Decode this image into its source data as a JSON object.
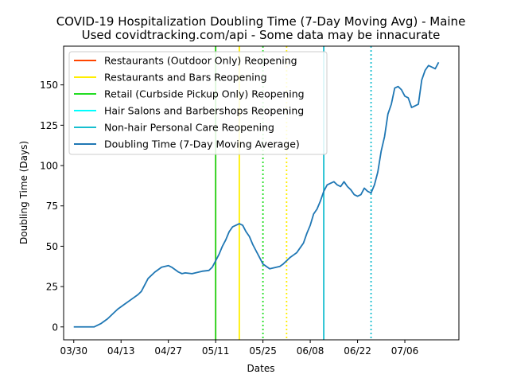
{
  "chart_data": {
    "type": "line",
    "title": "COVID-19 Hospitalization Doubling Time (7-Day Moving Avg) - Maine",
    "subtitle": "Used covidtracking.com/api - Some data may be innacurate",
    "xlabel": "Dates",
    "ylabel": "Doubling Time (Days)",
    "x_range": [
      "2020-03-27",
      "2020-07-22"
    ],
    "ylim": [
      -8,
      174
    ],
    "x_ticks": [
      {
        "date": "2020-03-30",
        "label": "03/30"
      },
      {
        "date": "2020-04-13",
        "label": "04/13"
      },
      {
        "date": "2020-04-27",
        "label": "04/27"
      },
      {
        "date": "2020-05-11",
        "label": "05/11"
      },
      {
        "date": "2020-05-25",
        "label": "05/25"
      },
      {
        "date": "2020-06-08",
        "label": "06/08"
      },
      {
        "date": "2020-06-22",
        "label": "06/22"
      },
      {
        "date": "2020-07-06",
        "label": "07/06"
      }
    ],
    "y_ticks": [
      0,
      25,
      50,
      75,
      100,
      125,
      150
    ],
    "grid": false,
    "legend_position": "top-left",
    "events": [
      {
        "name": "Restaurants (Outdoor Only) Reopening",
        "color": "#ff4500",
        "dates": [
          "2020-05-11"
        ],
        "styles": [
          "solid"
        ]
      },
      {
        "name": "Restaurants and Bars Reopening",
        "color": "#ffee00",
        "dates": [
          "2020-05-18",
          "2020-06-01"
        ],
        "styles": [
          "solid",
          "dotted"
        ]
      },
      {
        "name": "Retail (Curbside Pickup Only) Reopening",
        "color": "#22dd22",
        "dates": [
          "2020-05-11",
          "2020-05-25"
        ],
        "styles": [
          "solid",
          "dotted"
        ]
      },
      {
        "name": "Hair Salons and Barbershops Reopening",
        "color": "#00ffff",
        "dates": [],
        "styles": []
      },
      {
        "name": "Non-hair Personal Care Reopening",
        "color": "#17becf",
        "dates": [
          "2020-06-12",
          "2020-06-26"
        ],
        "styles": [
          "solid",
          "dotted"
        ]
      }
    ],
    "series": [
      {
        "name": "Doubling Time (7-Day Moving Average)",
        "color": "#1f77b4",
        "points": [
          [
            "2020-03-30",
            0
          ],
          [
            "2020-04-05",
            0
          ],
          [
            "2020-04-07",
            2
          ],
          [
            "2020-04-09",
            5
          ],
          [
            "2020-04-11",
            9
          ],
          [
            "2020-04-12",
            11
          ],
          [
            "2020-04-14",
            14
          ],
          [
            "2020-04-16",
            17
          ],
          [
            "2020-04-18",
            20
          ],
          [
            "2020-04-19",
            22
          ],
          [
            "2020-04-20",
            26
          ],
          [
            "2020-04-21",
            30
          ],
          [
            "2020-04-23",
            34
          ],
          [
            "2020-04-25",
            37
          ],
          [
            "2020-04-27",
            38
          ],
          [
            "2020-04-28",
            37
          ],
          [
            "2020-04-30",
            34
          ],
          [
            "2020-05-01",
            33
          ],
          [
            "2020-05-02",
            33.5
          ],
          [
            "2020-05-04",
            33
          ],
          [
            "2020-05-05",
            33.5
          ],
          [
            "2020-05-06",
            34
          ],
          [
            "2020-05-07",
            34.5
          ],
          [
            "2020-05-09",
            35
          ],
          [
            "2020-05-10",
            37
          ],
          [
            "2020-05-11",
            41
          ],
          [
            "2020-05-12",
            45
          ],
          [
            "2020-05-13",
            50
          ],
          [
            "2020-05-14",
            54
          ],
          [
            "2020-05-15",
            59
          ],
          [
            "2020-05-16",
            62
          ],
          [
            "2020-05-17",
            63
          ],
          [
            "2020-05-18",
            64
          ],
          [
            "2020-05-19",
            63
          ],
          [
            "2020-05-20",
            59
          ],
          [
            "2020-05-21",
            56
          ],
          [
            "2020-05-22",
            51
          ],
          [
            "2020-05-23",
            47
          ],
          [
            "2020-05-24",
            43
          ],
          [
            "2020-05-25",
            39
          ],
          [
            "2020-05-26",
            37.5
          ],
          [
            "2020-05-27",
            36
          ],
          [
            "2020-05-28",
            36.5
          ],
          [
            "2020-05-29",
            37
          ],
          [
            "2020-05-30",
            37.5
          ],
          [
            "2020-05-31",
            39
          ],
          [
            "2020-06-01",
            41
          ],
          [
            "2020-06-02",
            43
          ],
          [
            "2020-06-03",
            44.5
          ],
          [
            "2020-06-04",
            46
          ],
          [
            "2020-06-05",
            49
          ],
          [
            "2020-06-06",
            52
          ],
          [
            "2020-06-07",
            58
          ],
          [
            "2020-06-08",
            63
          ],
          [
            "2020-06-09",
            70
          ],
          [
            "2020-06-10",
            73
          ],
          [
            "2020-06-11",
            78
          ],
          [
            "2020-06-12",
            84
          ],
          [
            "2020-06-13",
            88
          ],
          [
            "2020-06-14",
            89
          ],
          [
            "2020-06-15",
            90
          ],
          [
            "2020-06-16",
            88
          ],
          [
            "2020-06-17",
            87
          ],
          [
            "2020-06-18",
            90
          ],
          [
            "2020-06-19",
            87
          ],
          [
            "2020-06-20",
            85
          ],
          [
            "2020-06-21",
            82
          ],
          [
            "2020-06-22",
            81
          ],
          [
            "2020-06-23",
            82
          ],
          [
            "2020-06-24",
            86
          ],
          [
            "2020-06-25",
            84
          ],
          [
            "2020-06-26",
            83
          ],
          [
            "2020-06-27",
            88
          ],
          [
            "2020-06-28",
            96
          ],
          [
            "2020-06-29",
            109
          ],
          [
            "2020-06-30",
            118
          ],
          [
            "2020-07-01",
            132
          ],
          [
            "2020-07-02",
            138
          ],
          [
            "2020-07-03",
            148
          ],
          [
            "2020-07-04",
            149
          ],
          [
            "2020-07-05",
            147
          ],
          [
            "2020-07-06",
            143
          ],
          [
            "2020-07-07",
            142
          ],
          [
            "2020-07-08",
            136
          ],
          [
            "2020-07-09",
            137
          ],
          [
            "2020-07-10",
            138
          ],
          [
            "2020-07-11",
            153
          ],
          [
            "2020-07-12",
            159
          ],
          [
            "2020-07-13",
            162
          ],
          [
            "2020-07-14",
            161
          ],
          [
            "2020-07-15",
            160
          ],
          [
            "2020-07-16",
            164
          ]
        ]
      }
    ]
  }
}
